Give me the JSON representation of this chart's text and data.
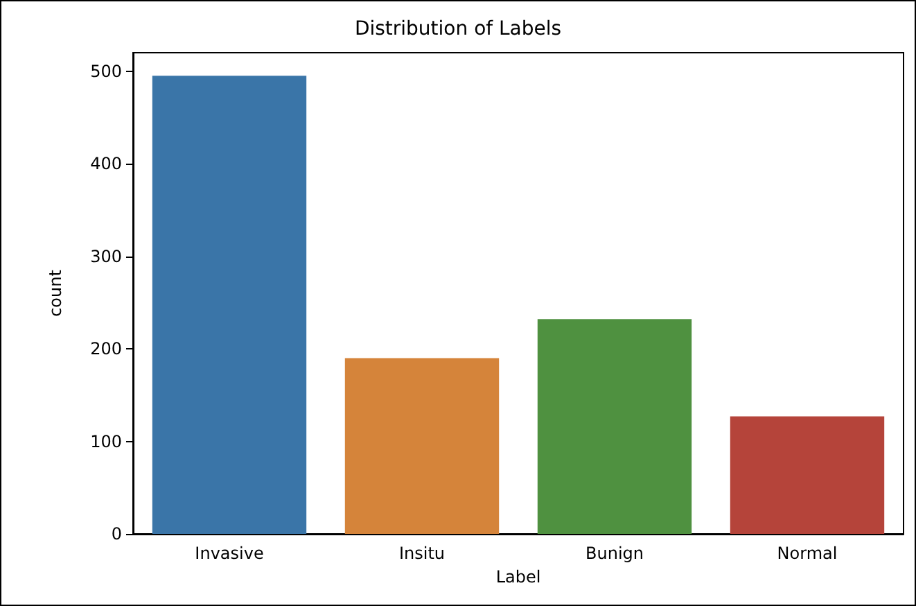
{
  "chart_data": {
    "type": "bar",
    "title": "Distribution of Labels",
    "xlabel": "Label",
    "ylabel": "count",
    "categories": [
      "Invasive",
      "Insitu",
      "Bunign",
      "Normal"
    ],
    "values": [
      495,
      190,
      232,
      127
    ],
    "colors": [
      "#3a75a8",
      "#d5843a",
      "#4f9140",
      "#b5443a"
    ],
    "ylim": [
      0,
      520
    ],
    "yticks": [
      0,
      100,
      200,
      300,
      400,
      500
    ],
    "grid": false
  }
}
